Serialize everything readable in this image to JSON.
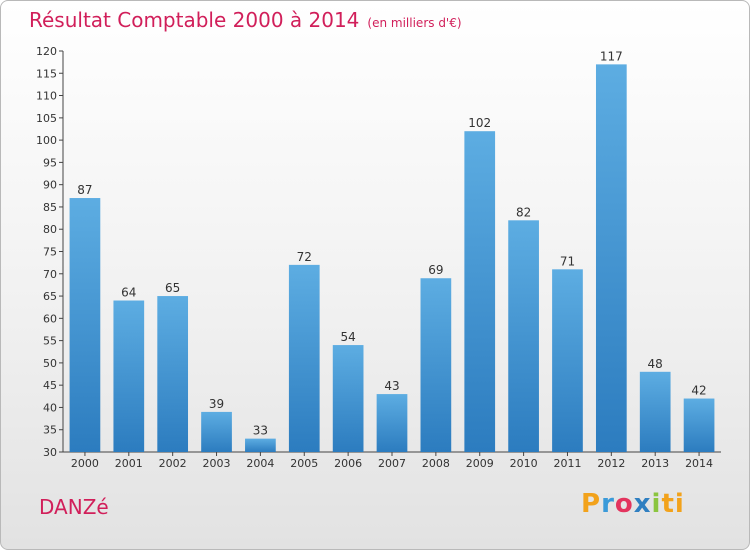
{
  "chart_data": {
    "type": "bar",
    "title": "Résultat Comptable 2000 à 2014",
    "subtitle": "(en milliers d'€)",
    "categories": [
      "2000",
      "2001",
      "2002",
      "2003",
      "2004",
      "2005",
      "2006",
      "2007",
      "2008",
      "2009",
      "2010",
      "2011",
      "2012",
      "2013",
      "2014"
    ],
    "values": [
      87,
      64,
      65,
      39,
      33,
      72,
      54,
      43,
      69,
      102,
      82,
      71,
      117,
      48,
      42
    ],
    "ylim": [
      30,
      120
    ],
    "yticks": [
      30,
      35,
      40,
      45,
      50,
      55,
      60,
      65,
      70,
      75,
      80,
      85,
      90,
      95,
      100,
      105,
      110,
      115,
      120
    ],
    "xlabel": "",
    "ylabel": "",
    "grid": false,
    "bar_color_top": "#5dade2",
    "bar_color_bottom": "#2c7cbf"
  },
  "footer": {
    "commune": "DANZé",
    "logo": [
      "P",
      "r",
      "o",
      "x",
      "i",
      "ti"
    ]
  },
  "colors": {
    "accent": "#d11f5a"
  }
}
